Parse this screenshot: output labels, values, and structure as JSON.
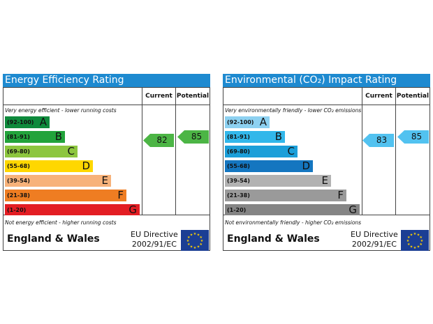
{
  "colors": {
    "header_blue": "#1e8ad0",
    "energy_bands": [
      "#0e8a3c",
      "#22a33b",
      "#8dc63f",
      "#ffd700",
      "#f7b27a",
      "#ef7d22",
      "#e31d23"
    ],
    "co2_bands": [
      "#8dd1f1",
      "#32b7ea",
      "#1c9fd9",
      "#1476c0",
      "#b2b2b2",
      "#9a9a9a",
      "#858585"
    ],
    "energy_current_arrow": "#4cb545",
    "energy_potential_arrow": "#4cb545",
    "co2_current_arrow": "#52c2f0",
    "co2_potential_arrow": "#52c2f0",
    "eu_flag_blue": "#1b3e94",
    "eu_star_yellow": "#ffd200"
  },
  "panels": [
    {
      "title": "Energy Efficiency Rating",
      "col_current": "Current",
      "col_potential": "Potential",
      "top_note": "Very energy efficient - lower running costs",
      "bottom_note": "Not energy efficient - higher running costs",
      "bands": [
        {
          "range": "(92-100)",
          "letter": "A"
        },
        {
          "range": "(81-91)",
          "letter": "B"
        },
        {
          "range": "(69-80)",
          "letter": "C"
        },
        {
          "range": "(55-68)",
          "letter": "D"
        },
        {
          "range": "(39-54)",
          "letter": "E"
        },
        {
          "range": "(21-38)",
          "letter": "F"
        },
        {
          "range": "(1-20)",
          "letter": "G"
        }
      ],
      "current": "82",
      "potential": "85",
      "region": "England & Wales",
      "directive_line1": "EU Directive",
      "directive_line2": "2002/91/EC"
    },
    {
      "title": "Environmental (CO₂) Impact Rating",
      "col_current": "Current",
      "col_potential": "Potential",
      "top_note": "Very environmentally friendly - lower CO₂ emissions",
      "bottom_note": "Not environmentally friendly - higher CO₂ emissions",
      "bands": [
        {
          "range": "(92-100)",
          "letter": "A"
        },
        {
          "range": "(81-91)",
          "letter": "B"
        },
        {
          "range": "(69-80)",
          "letter": "C"
        },
        {
          "range": "(55-68)",
          "letter": "D"
        },
        {
          "range": "(39-54)",
          "letter": "E"
        },
        {
          "range": "(21-38)",
          "letter": "F"
        },
        {
          "range": "(1-20)",
          "letter": "G"
        }
      ],
      "current": "83",
      "potential": "85",
      "region": "England & Wales",
      "directive_line1": "EU Directive",
      "directive_line2": "2002/91/EC"
    }
  ]
}
